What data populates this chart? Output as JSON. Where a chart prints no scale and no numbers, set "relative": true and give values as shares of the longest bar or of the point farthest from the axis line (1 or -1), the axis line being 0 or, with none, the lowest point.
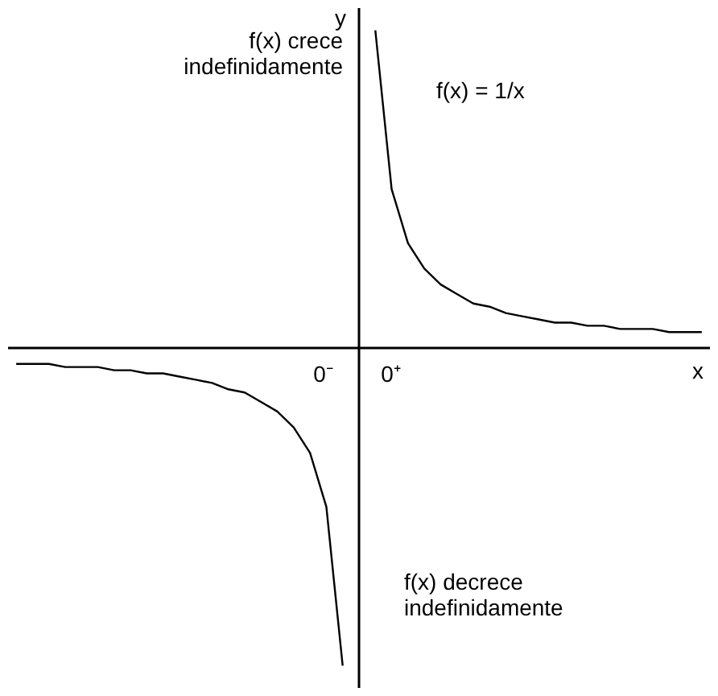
{
  "chart_data": {
    "type": "line",
    "relative": true,
    "xlabel": "x",
    "ylabel": "y",
    "categories": [
      null,
      null,
      null,
      null,
      null,
      null,
      null,
      null,
      null,
      null,
      null,
      null,
      null,
      null,
      null,
      null,
      null,
      null,
      null,
      null,
      null,
      null,
      null,
      null,
      null,
      null,
      null,
      null,
      null,
      null,
      null,
      null,
      null,
      null,
      null,
      null,
      null,
      null,
      null,
      null,
      null,
      null,
      null
    ],
    "series": [
      {
        "color": "#000000",
        "values": [
          -0.05,
          -0.05,
          -0.05,
          -0.06,
          -0.06,
          -0.06,
          -0.07,
          -0.07,
          -0.08,
          -0.08,
          -0.09,
          -0.1,
          -0.11,
          -0.13,
          -0.14,
          -0.17,
          -0.2,
          -0.25,
          -0.33,
          -0.5,
          -1,
          null,
          null,
          null,
          null,
          null,
          null,
          null,
          null,
          null,
          null,
          null,
          null,
          null,
          null,
          null,
          null,
          null,
          null,
          null,
          null,
          null,
          null
        ]
      },
      {
        "color": "#000000",
        "values": [
          null,
          null,
          null,
          null,
          null,
          null,
          null,
          null,
          null,
          null,
          null,
          null,
          null,
          null,
          null,
          null,
          null,
          null,
          null,
          null,
          null,
          null,
          1,
          0.5,
          0.33,
          0.25,
          0.2,
          0.17,
          0.14,
          0.13,
          0.11,
          0.1,
          0.09,
          0.08,
          0.08,
          0.07,
          0.07,
          0.06,
          0.06,
          0.06,
          0.05,
          0.05,
          0.05
        ]
      }
    ],
    "annotations": [
      "f(x) crece\nindefinidamente",
      "f(x) = 1/x",
      "0⁻",
      "0⁺",
      "f(x) decrece\nindefinidamente"
    ]
  }
}
